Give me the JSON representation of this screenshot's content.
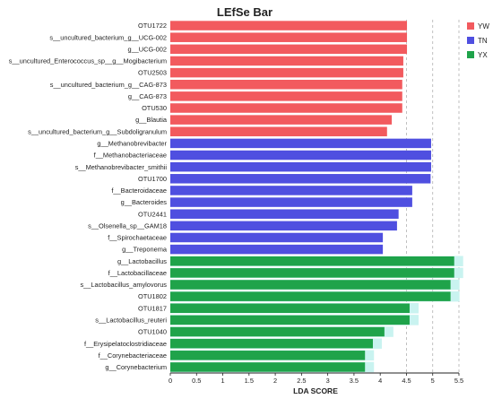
{
  "chart_data": {
    "type": "bar",
    "orientation": "horizontal",
    "title": "LEfSe Bar",
    "xlabel": "LDA SCORE",
    "ylabel": "",
    "xlim": [
      0,
      5.5
    ],
    "xticks": [
      "0",
      "0.5",
      "1",
      "1.5",
      "2",
      "2.5",
      "3",
      "3.5",
      "4",
      "4.5",
      "5",
      "5.5"
    ],
    "grid": "vertical dashed gridlines at x = 4.5, 5, 5.5",
    "legend_position": "top-right",
    "groups": [
      {
        "name": "YW",
        "color": "#f25a5e"
      },
      {
        "name": "TN",
        "color": "#4f4fe0"
      },
      {
        "name": "YX",
        "color": "#1fa34a"
      }
    ],
    "bars": [
      {
        "label": "OTU1722",
        "value": 4.51,
        "group": "YW"
      },
      {
        "label": "s__uncultured_bacterium_g__UCG-002",
        "value": 4.51,
        "group": "YW"
      },
      {
        "label": "g__UCG-002",
        "value": 4.51,
        "group": "YW"
      },
      {
        "label": "s__uncultured_Enterococcus_sp__g__Mogibacterium",
        "value": 4.44,
        "group": "YW"
      },
      {
        "label": "OTU2503",
        "value": 4.44,
        "group": "YW"
      },
      {
        "label": "s__uncultured_bacterium_g__CAG-873",
        "value": 4.42,
        "group": "YW"
      },
      {
        "label": "g__CAG-873",
        "value": 4.42,
        "group": "YW"
      },
      {
        "label": "OTU530",
        "value": 4.42,
        "group": "YW"
      },
      {
        "label": "g__Blautia",
        "value": 4.22,
        "group": "YW"
      },
      {
        "label": "s__uncultured_bacterium_g__Subdoligranulum",
        "value": 4.13,
        "group": "YW"
      },
      {
        "label": "g__Methanobrevibacter",
        "value": 4.97,
        "group": "TN"
      },
      {
        "label": "f__Methanobacteriaceae",
        "value": 4.97,
        "group": "TN"
      },
      {
        "label": "s__Methanobrevibacter_smithii",
        "value": 4.97,
        "group": "TN"
      },
      {
        "label": "OTU1700",
        "value": 4.96,
        "group": "TN"
      },
      {
        "label": "f__Bacteroidaceae",
        "value": 4.61,
        "group": "TN"
      },
      {
        "label": "g__Bacteroides",
        "value": 4.61,
        "group": "TN"
      },
      {
        "label": "OTU2441",
        "value": 4.35,
        "group": "TN"
      },
      {
        "label": "s__Olsenella_sp__GAM18",
        "value": 4.32,
        "group": "TN"
      },
      {
        "label": "f__Spirochaetaceae",
        "value": 4.05,
        "group": "TN"
      },
      {
        "label": "g__Treponema",
        "value": 4.05,
        "group": "TN"
      },
      {
        "label": "g__Lactobacillus",
        "value": 5.41,
        "group": "YX"
      },
      {
        "label": "f__Lactobacillaceae",
        "value": 5.41,
        "group": "YX"
      },
      {
        "label": "s__Lactobacillus_amylovorus",
        "value": 5.34,
        "group": "YX"
      },
      {
        "label": "OTU1802",
        "value": 5.34,
        "group": "YX"
      },
      {
        "label": "OTU1817",
        "value": 4.56,
        "group": "YX"
      },
      {
        "label": "s__Lactobacillus_reuteri",
        "value": 4.56,
        "group": "YX"
      },
      {
        "label": "OTU1040",
        "value": 4.08,
        "group": "YX"
      },
      {
        "label": "f__Erysipelatoclostridiaceae",
        "value": 3.86,
        "group": "YX"
      },
      {
        "label": "f__Corynebacteriaceae",
        "value": 3.71,
        "group": "YX"
      },
      {
        "label": "g__Corynebacterium",
        "value": 3.71,
        "group": "YX"
      }
    ]
  }
}
